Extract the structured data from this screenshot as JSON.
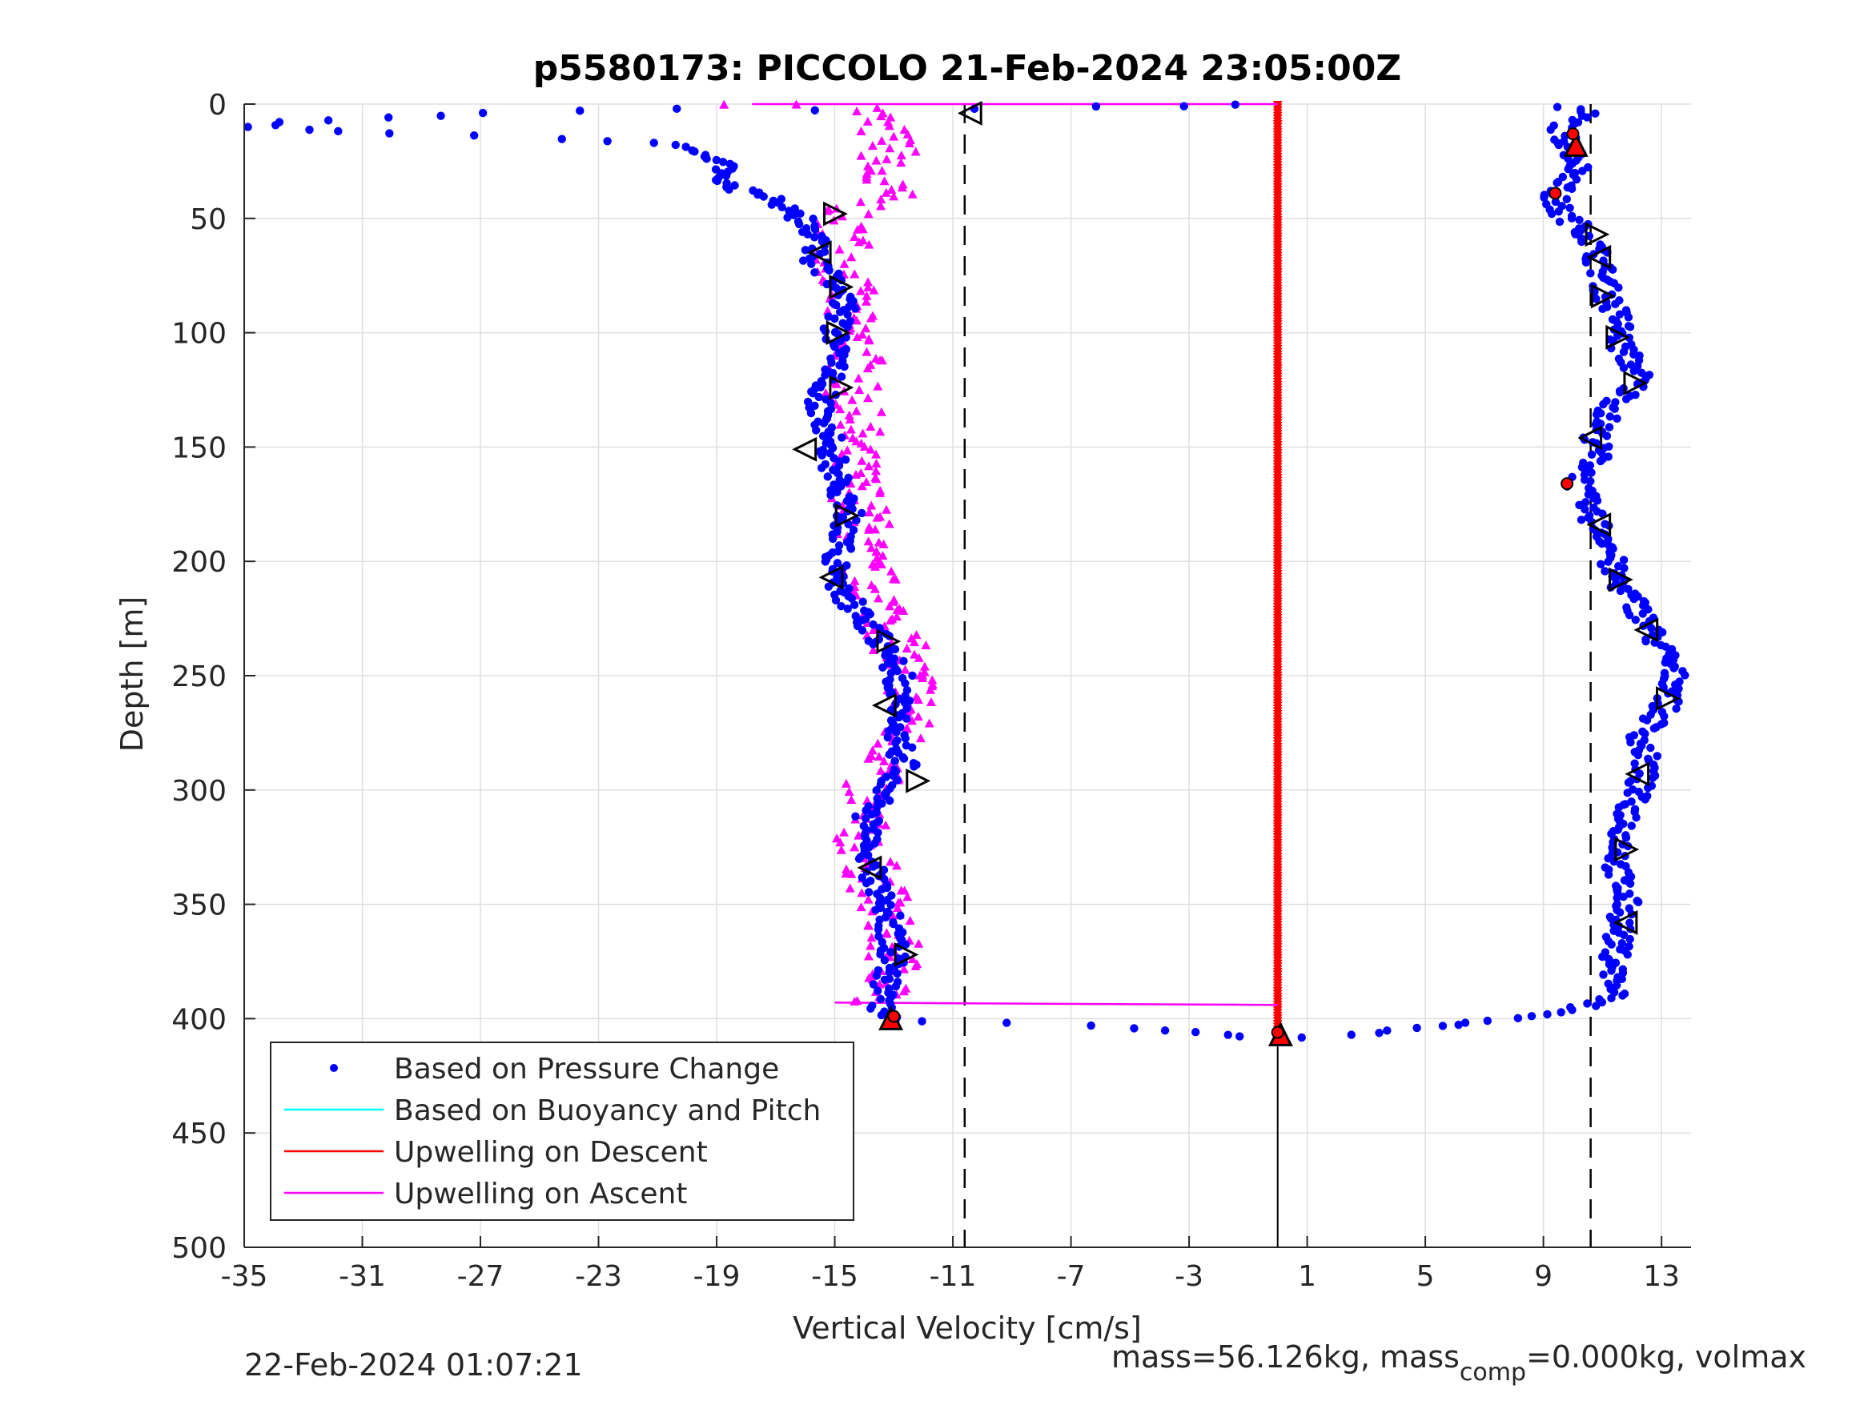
{
  "chart_data": {
    "type": "scatter",
    "title": "p5580173: PICCOLO 21-Feb-2024 23:05:00Z",
    "xlabel": "Vertical Velocity [cm/s]",
    "ylabel": "Depth [m]",
    "xlim": [
      -35,
      14
    ],
    "ylim": [
      0,
      500
    ],
    "y_reversed": true,
    "grid": true,
    "legend_position": "bottom-left",
    "x_ticks": [
      -35,
      -31,
      -27,
      -23,
      -19,
      -15,
      -11,
      -7,
      -3,
      1,
      5,
      9,
      13
    ],
    "y_ticks": [
      0,
      50,
      100,
      150,
      200,
      250,
      300,
      350,
      400,
      450,
      500
    ],
    "x_tick_labels": [
      "-35",
      "-31",
      "-27",
      "-23",
      "-19",
      "-15",
      "-11",
      "-7",
      "-3",
      "1",
      "5",
      "9",
      "13"
    ],
    "y_tick_labels": [
      "0",
      "50",
      "100",
      "150",
      "200",
      "250",
      "300",
      "350",
      "400",
      "450",
      "500"
    ],
    "reference_lines": {
      "dashed_x": [
        -10.6,
        10.6
      ],
      "solid_x": 0,
      "solid_y_range": [
        408,
        500
      ]
    },
    "legend": [
      {
        "label": "Based on Pressure Change",
        "color": "#0000ff",
        "style": "dot"
      },
      {
        "label": "Based on Buoyancy and Pitch",
        "color": "#00ffff",
        "style": "line"
      },
      {
        "label": "Upwelling on Descent",
        "color": "#ff0000",
        "style": "line"
      },
      {
        "label": "Upwelling on Ascent",
        "color": "#ff00ff",
        "style": "line"
      }
    ],
    "series": [
      {
        "name": "Based on Pressure Change",
        "color": "#0000ff",
        "segments": [
          {
            "part": "descent",
            "points": [
              [
                9.6,
                1
              ],
              [
                10.5,
                3
              ],
              [
                10.0,
                7
              ],
              [
                9.6,
                12
              ],
              [
                9.9,
                18
              ],
              [
                10.2,
                25
              ],
              [
                10.1,
                32
              ],
              [
                9.3,
                40
              ],
              [
                9.6,
                48
              ],
              [
                10.5,
                56
              ],
              [
                10.8,
                65
              ],
              [
                11.0,
                75
              ],
              [
                11.2,
                85
              ],
              [
                11.6,
                95
              ],
              [
                11.6,
                105
              ],
              [
                12.3,
                120
              ],
              [
                11.2,
                135
              ],
              [
                10.8,
                145
              ],
              [
                10.8,
                155
              ],
              [
                10.2,
                167
              ],
              [
                10.6,
                180
              ],
              [
                11.3,
                192
              ],
              [
                11.3,
                205
              ],
              [
                12.2,
                220
              ],
              [
                12.7,
                232
              ],
              [
                13.3,
                245
              ],
              [
                13.5,
                256
              ],
              [
                13.0,
                265
              ],
              [
                12.3,
                278
              ],
              [
                12.5,
                290
              ],
              [
                12.0,
                305
              ],
              [
                11.7,
                320
              ],
              [
                11.5,
                335
              ],
              [
                11.8,
                350
              ],
              [
                11.5,
                365
              ],
              [
                11.4,
                380
              ],
              [
                11.4,
                390
              ],
              [
                10.0,
                396
              ],
              [
                8.0,
                400
              ],
              [
                4.0,
                405
              ],
              [
                2.5,
                407
              ],
              [
                0.5,
                408
              ]
            ]
          },
          {
            "part": "ascent",
            "points": [
              [
                -1.2,
                408
              ],
              [
                -3.5,
                405
              ],
              [
                -6.0,
                403
              ],
              [
                -8.8,
                402
              ],
              [
                -12.0,
                401
              ],
              [
                -13.2,
                400
              ],
              [
                -13.5,
                395
              ],
              [
                -13.3,
                385
              ],
              [
                -13.0,
                370
              ],
              [
                -13.2,
                355
              ],
              [
                -13.6,
                340
              ],
              [
                -13.8,
                325
              ],
              [
                -14.0,
                315
              ],
              [
                -13.4,
                300
              ],
              [
                -12.6,
                290
              ],
              [
                -12.9,
                275
              ],
              [
                -12.9,
                260
              ],
              [
                -12.8,
                250
              ],
              [
                -13.2,
                240
              ],
              [
                -14.0,
                225
              ],
              [
                -15.0,
                210
              ],
              [
                -15.0,
                200
              ],
              [
                -14.5,
                180
              ],
              [
                -15.0,
                160
              ],
              [
                -15.2,
                145
              ],
              [
                -15.5,
                130
              ],
              [
                -15.0,
                115
              ],
              [
                -15.0,
                100
              ],
              [
                -14.6,
                85
              ],
              [
                -15.6,
                70
              ],
              [
                -15.8,
                55
              ],
              [
                -16.5,
                45
              ],
              [
                -18.0,
                38
              ],
              [
                -19.0,
                33
              ],
              [
                -18.5,
                28
              ],
              [
                -19.5,
                22
              ],
              [
                -20.0,
                18
              ],
              [
                -21.0,
                17
              ],
              [
                -22.5,
                16
              ],
              [
                -24.2,
                15
              ],
              [
                -30.0,
                13
              ],
              [
                -34.5,
                10
              ],
              [
                -33.5,
                8
              ],
              [
                -26.5,
                4
              ],
              [
                -20.0,
                2
              ],
              [
                -15.5,
                3
              ],
              [
                -10.5,
                2
              ],
              [
                -6.5,
                1
              ],
              [
                -3.0,
                1
              ],
              [
                -1.0,
                0
              ]
            ]
          }
        ]
      },
      {
        "name": "Upwelling on Ascent",
        "color": "#ff00ff",
        "points": [
          [
            -17.8,
            0
          ],
          [
            -14.0,
            2
          ],
          [
            -13.5,
            10
          ],
          [
            -13.0,
            20
          ],
          [
            -13.8,
            30
          ],
          [
            -13.2,
            40
          ],
          [
            -15.0,
            50
          ],
          [
            -14.5,
            60
          ],
          [
            -14.8,
            70
          ],
          [
            -14.6,
            80
          ],
          [
            -14.7,
            90
          ],
          [
            -14.4,
            100
          ],
          [
            -14.2,
            110
          ],
          [
            -14.5,
            125
          ],
          [
            -14.3,
            140
          ],
          [
            -14.5,
            155
          ],
          [
            -14.2,
            170
          ],
          [
            -14.0,
            185
          ],
          [
            -14.2,
            200
          ],
          [
            -13.5,
            215
          ],
          [
            -13.0,
            230
          ],
          [
            -12.7,
            245
          ],
          [
            -12.3,
            255
          ],
          [
            -12.6,
            270
          ],
          [
            -13.0,
            285
          ],
          [
            -14.0,
            300
          ],
          [
            -14.2,
            315
          ],
          [
            -13.9,
            330
          ],
          [
            -13.5,
            345
          ],
          [
            -13.2,
            360
          ],
          [
            -13.0,
            375
          ],
          [
            -13.0,
            390
          ],
          [
            -15.0,
            393
          ]
        ],
        "connectors": [
          [
            [
              -17.8,
              0
            ],
            [
              0,
              0
            ]
          ],
          [
            [
              -15.0,
              393
            ],
            [
              0,
              394
            ]
          ]
        ]
      },
      {
        "name": "Upwelling on Descent",
        "color": "#ff0000",
        "points_x": 0,
        "depth_range": [
          0,
          408
        ]
      }
    ],
    "markers": {
      "triangles": [
        {
          "dir": "left",
          "points": [
            [
              -10.4,
              4
            ],
            [
              -15.5,
              65
            ],
            [
              -16.0,
              151
            ],
            [
              -15.1,
              207
            ],
            [
              -13.3,
              263
            ],
            [
              -13.8,
              334
            ],
            [
              10.9,
              67
            ],
            [
              10.6,
              146
            ],
            [
              10.9,
              184
            ],
            [
              12.5,
              230
            ],
            [
              12.2,
              293
            ],
            [
              11.8,
              358
            ]
          ]
        },
        {
          "dir": "right",
          "points": [
            [
              -15.0,
              48
            ],
            [
              -14.8,
              80
            ],
            [
              -14.9,
              100
            ],
            [
              -14.8,
              124
            ],
            [
              -14.6,
              180
            ],
            [
              -13.2,
              235
            ],
            [
              -12.2,
              296
            ],
            [
              -12.6,
              372
            ],
            [
              10.8,
              57
            ],
            [
              11.0,
              84
            ],
            [
              11.5,
              102
            ],
            [
              12.1,
              122
            ],
            [
              11.6,
              208
            ],
            [
              13.2,
              260
            ],
            [
              11.8,
              326
            ]
          ]
        },
        {
          "dir": "up",
          "filled": true,
          "points": [
            [
              10.1,
              18
            ],
            [
              -13.1,
              400
            ],
            [
              0.1,
              407
            ]
          ]
        }
      ],
      "red_dots": [
        [
          10.0,
          13
        ],
        [
          9.4,
          39
        ],
        [
          9.8,
          166
        ],
        [
          -13.0,
          399
        ],
        [
          0.0,
          406
        ]
      ]
    }
  },
  "footer": {
    "timestamp": "22-Feb-2024 01:07:21",
    "mass_prefix": "mass=56.126kg, mass",
    "mass_sub": "comp",
    "mass_suffix": "=0.000kg, volmax"
  }
}
